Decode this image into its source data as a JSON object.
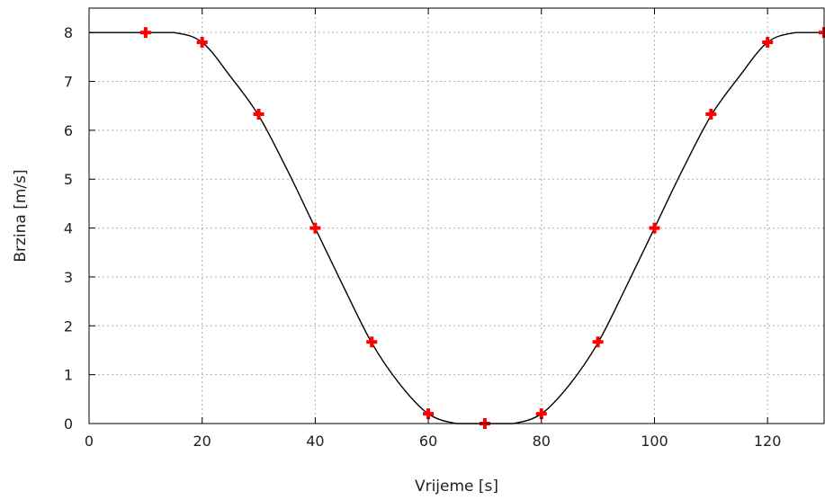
{
  "chart_data": {
    "type": "line",
    "title": "",
    "xlabel": "Vrijeme [s]",
    "ylabel": "Brzina [m/s]",
    "xlim": [
      0,
      130
    ],
    "ylim": [
      0,
      8.5
    ],
    "x_ticks": [
      0,
      20,
      40,
      60,
      80,
      100,
      120
    ],
    "y_ticks": [
      0,
      1,
      2,
      3,
      4,
      5,
      6,
      7,
      8
    ],
    "grid": true,
    "legend": "none",
    "series": [
      {
        "style": "line",
        "color": "#000000",
        "x": [
          0,
          5,
          10,
          15,
          20,
          25,
          30,
          35,
          40,
          45,
          50,
          55,
          60,
          65,
          70,
          75,
          80,
          85,
          90,
          95,
          100,
          105,
          110,
          115,
          120,
          125,
          130
        ],
        "y": [
          8,
          8,
          8,
          8,
          7.8,
          7.1,
          6.3,
          5.2,
          4.0,
          2.8,
          1.65,
          0.8,
          0.2,
          0,
          0,
          0,
          0.2,
          0.8,
          1.65,
          2.8,
          4.0,
          5.2,
          6.3,
          7.1,
          7.8,
          8,
          8
        ]
      },
      {
        "style": "markers",
        "marker": "plus",
        "color": "#ff0000",
        "x": [
          10,
          20,
          30,
          40,
          50,
          60,
          70,
          80,
          90,
          100,
          110,
          120,
          130
        ],
        "y": [
          8,
          7.8,
          6.33,
          4.0,
          1.67,
          0.2,
          0,
          0.2,
          1.67,
          4.0,
          6.33,
          7.8,
          8
        ]
      }
    ]
  }
}
